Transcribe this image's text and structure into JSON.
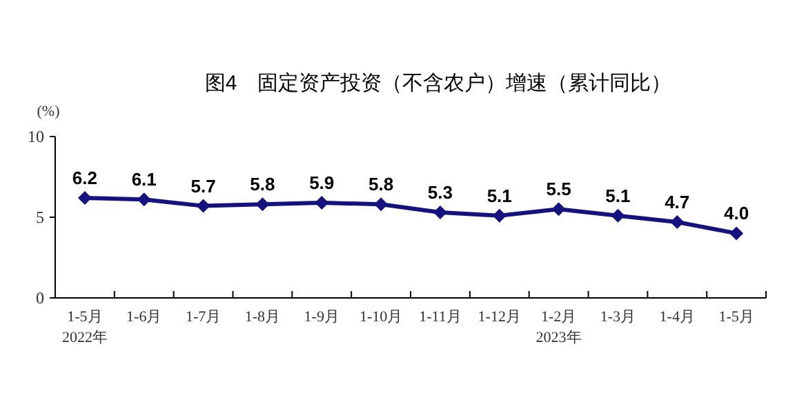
{
  "chart_data": {
    "type": "line",
    "title": "图4　固定资产投资（不含农户）增速（累计同比）",
    "ylabel": "(%)",
    "categories": [
      "1-5月\n2022年",
      "1-6月",
      "1-7月",
      "1-8月",
      "1-9月",
      "1-10月",
      "1-11月",
      "1-12月",
      "1-2月\n2023年",
      "1-3月",
      "1-4月",
      "1-5月"
    ],
    "series": [
      {
        "color": "#15127e",
        "values": [
          6.2,
          6.1,
          5.7,
          5.8,
          5.9,
          5.8,
          5.3,
          5.1,
          5.5,
          5.1,
          4.7,
          4.0
        ],
        "value_labels": [
          "6.2",
          "6.1",
          "5.7",
          "5.8",
          "5.9",
          "5.8",
          "5.3",
          "5.1",
          "5.5",
          "5.1",
          "4.7",
          "4.0"
        ]
      }
    ],
    "ylim": [
      0,
      10
    ],
    "yticks": [
      0,
      5,
      10
    ],
    "marker": "diamond"
  }
}
